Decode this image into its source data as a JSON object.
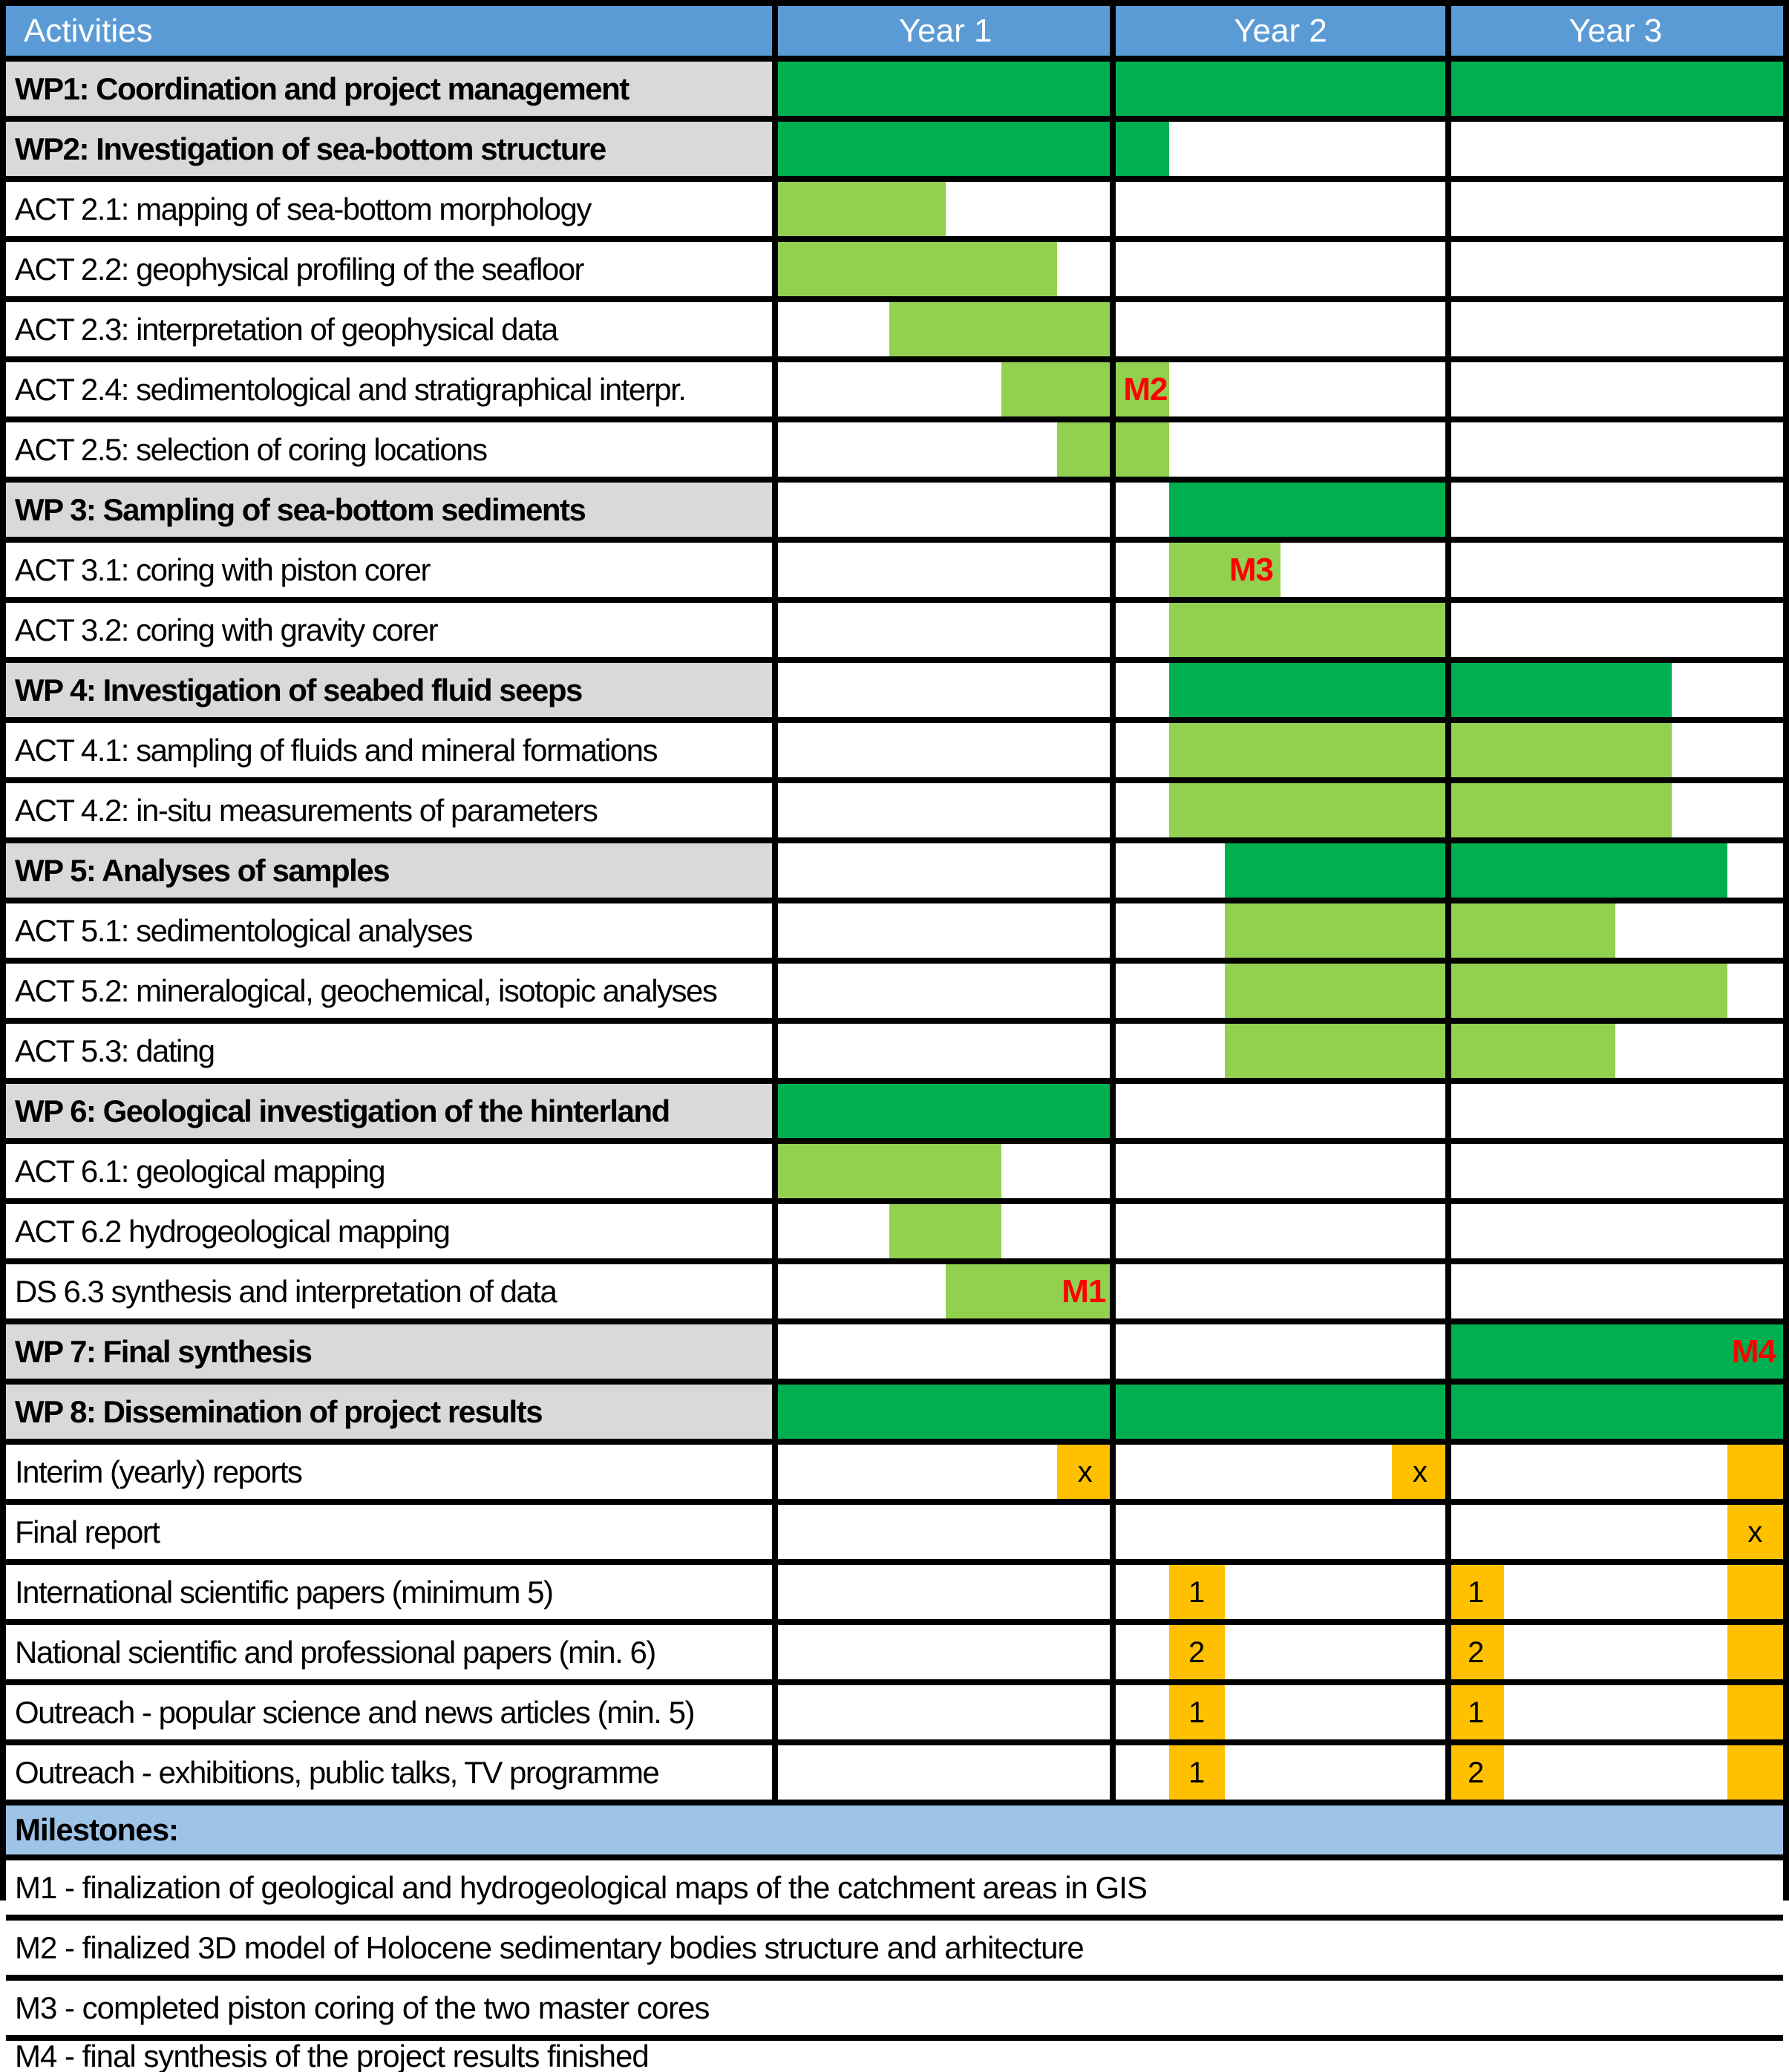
{
  "header": {
    "activities_label": "Activities"
  },
  "colors": {
    "header_blue": "#5B9BD5",
    "milestones_header_blue": "#9DC3E6",
    "wp_label_gray": "#D9D9D9",
    "wp_bar_dark_green": "#00B050",
    "act_bar_light_green": "#92D050",
    "deliverable_gold": "#FFC000",
    "milestone_red": "#FF0000",
    "border_black": "#000000"
  },
  "chart_data": {
    "type": "table",
    "subtype": "gantt-project-timeline",
    "x_axis": {
      "unit": "months",
      "range": [
        0,
        36
      ],
      "columns": [
        "Year 1",
        "Year 2",
        "Year 3"
      ],
      "months_per_column": 12,
      "grid": "year-separators"
    },
    "legend_position": "none",
    "rows": [
      {
        "label": "WP1: Coordination and project management",
        "kind": "wp",
        "bars": [
          {
            "start": 0,
            "end": 36
          }
        ]
      },
      {
        "label": "WP2: Investigation of sea-bottom structure",
        "kind": "wp",
        "bars": [
          {
            "start": 0,
            "end": 14
          }
        ]
      },
      {
        "label": "ACT 2.1: mapping of sea-bottom morphology",
        "kind": "act",
        "bars": [
          {
            "start": 0,
            "end": 6
          }
        ]
      },
      {
        "label": "ACT 2.2: geophysical profiling of the seafloor",
        "kind": "act",
        "bars": [
          {
            "start": 0,
            "end": 10
          }
        ]
      },
      {
        "label": "ACT 2.3: interpretation of geophysical data",
        "kind": "act",
        "bars": [
          {
            "start": 4,
            "end": 12
          }
        ]
      },
      {
        "label": "ACT 2.4: sedimentological and stratigraphical interpr.",
        "kind": "act",
        "bars": [
          {
            "start": 8,
            "end": 14
          }
        ],
        "milestone": {
          "label": "M2",
          "month": 12,
          "align": "left"
        }
      },
      {
        "label": "ACT 2.5: selection of coring locations",
        "kind": "act",
        "bars": [
          {
            "start": 10,
            "end": 14
          }
        ]
      },
      {
        "label": "WP 3: Sampling of sea-bottom sediments",
        "kind": "wp",
        "bars": [
          {
            "start": 14,
            "end": 24
          }
        ]
      },
      {
        "label": "ACT 3.1: coring with piston corer",
        "kind": "act",
        "bars": [
          {
            "start": 14,
            "end": 18
          }
        ],
        "milestone": {
          "label": "M3",
          "month": 18,
          "align": "right"
        }
      },
      {
        "label": "ACT 3.2: coring with gravity corer",
        "kind": "act",
        "bars": [
          {
            "start": 14,
            "end": 24
          }
        ]
      },
      {
        "label": "WP 4: Investigation of seabed fluid seeps",
        "kind": "wp",
        "bars": [
          {
            "start": 14,
            "end": 32
          }
        ]
      },
      {
        "label": "ACT 4.1: sampling of fluids and mineral formations",
        "kind": "act",
        "bars": [
          {
            "start": 14,
            "end": 32
          }
        ]
      },
      {
        "label": "ACT 4.2: in-situ measurements of parameters",
        "kind": "act",
        "bars": [
          {
            "start": 14,
            "end": 32
          }
        ]
      },
      {
        "label": "WP 5: Analyses of samples",
        "kind": "wp",
        "bars": [
          {
            "start": 16,
            "end": 34
          }
        ]
      },
      {
        "label": "ACT 5.1: sedimentological analyses",
        "kind": "act",
        "bars": [
          {
            "start": 16,
            "end": 30
          }
        ]
      },
      {
        "label": "ACT 5.2: mineralogical, geochemical, isotopic analyses",
        "kind": "act",
        "bars": [
          {
            "start": 16,
            "end": 34
          }
        ]
      },
      {
        "label": "ACT 5.3: dating",
        "kind": "act",
        "bars": [
          {
            "start": 16,
            "end": 30
          }
        ]
      },
      {
        "label": "WP 6: Geological investigation of the hinterland",
        "kind": "wp",
        "bars": [
          {
            "start": 0,
            "end": 12
          }
        ]
      },
      {
        "label": "ACT 6.1: geological mapping",
        "kind": "act",
        "bars": [
          {
            "start": 0,
            "end": 8
          }
        ]
      },
      {
        "label": "ACT 6.2 hydrogeological mapping",
        "kind": "act",
        "bars": [
          {
            "start": 4,
            "end": 8
          }
        ]
      },
      {
        "label": "DS 6.3 synthesis and interpretation of data",
        "kind": "act",
        "bars": [
          {
            "start": 6,
            "end": 12
          }
        ],
        "milestone": {
          "label": "M1",
          "month": 12,
          "align": "right"
        }
      },
      {
        "label": "WP 7: Final synthesis",
        "kind": "wp",
        "bars": [
          {
            "start": 24,
            "end": 36
          }
        ],
        "milestone": {
          "label": "M4",
          "month": 36,
          "align": "right"
        }
      },
      {
        "label": "WP 8: Dissemination of project results",
        "kind": "wp",
        "bars": [
          {
            "start": 0,
            "end": 36
          }
        ]
      },
      {
        "label": "Interim (yearly) reports",
        "kind": "deliverable",
        "bars": [
          {
            "start": 10,
            "end": 12,
            "text": "x"
          },
          {
            "start": 22,
            "end": 24,
            "text": "x"
          },
          {
            "start": 34,
            "end": 36,
            "text": ""
          }
        ]
      },
      {
        "label": "Final report",
        "kind": "deliverable",
        "bars": [
          {
            "start": 34,
            "end": 36,
            "text": "x"
          }
        ]
      },
      {
        "label": "International scientific papers (minimum 5)",
        "kind": "deliverable",
        "bars": [
          {
            "start": 14,
            "end": 16,
            "text": "1"
          },
          {
            "start": 24,
            "end": 26,
            "text": "1"
          },
          {
            "start": 34,
            "end": 36,
            "text": ""
          }
        ]
      },
      {
        "label": "National scientific and professional papers (min. 6)",
        "kind": "deliverable",
        "bars": [
          {
            "start": 14,
            "end": 16,
            "text": "2"
          },
          {
            "start": 24,
            "end": 26,
            "text": "2"
          },
          {
            "start": 34,
            "end": 36,
            "text": ""
          }
        ]
      },
      {
        "label": "Outreach - popular science and news articles (min. 5)",
        "kind": "deliverable",
        "bars": [
          {
            "start": 14,
            "end": 16,
            "text": "1"
          },
          {
            "start": 24,
            "end": 26,
            "text": "1"
          },
          {
            "start": 34,
            "end": 36,
            "text": ""
          }
        ]
      },
      {
        "label": "Outreach - exhibitions, public talks, TV programme",
        "kind": "deliverable",
        "bars": [
          {
            "start": 14,
            "end": 16,
            "text": "1"
          },
          {
            "start": 24,
            "end": 26,
            "text": "2"
          },
          {
            "start": 34,
            "end": 36,
            "text": ""
          }
        ]
      }
    ]
  },
  "milestones_legend": {
    "title": "Milestones:",
    "items": [
      "M1 - finalization of geological and hydrogeological maps of the catchment areas in GIS",
      "M2 - finalized 3D model of Holocene sedimentary bodies structure and arhitecture",
      "M3 - completed piston coring of the two master cores",
      "M4 - final synthesis of the project results finished"
    ]
  }
}
